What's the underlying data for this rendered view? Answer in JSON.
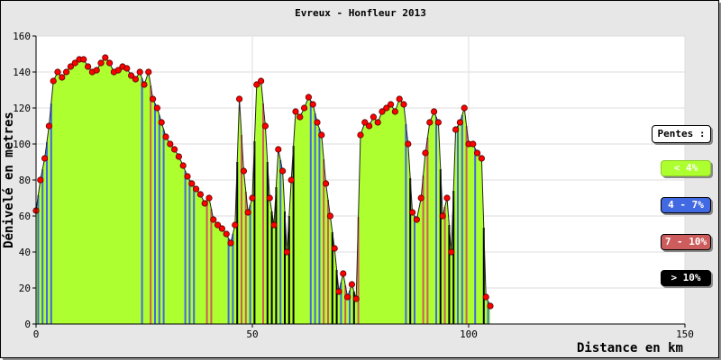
{
  "chart_data": {
    "type": "area",
    "title": "Evreux - Honfleur 2013",
    "xlabel": "Distance en km",
    "ylabel": "Dénivelé en metres",
    "xlim": [
      0,
      150
    ],
    "ylim": [
      0,
      160
    ],
    "xticks": [
      "0",
      "50",
      "100",
      "150"
    ],
    "yticks": [
      "0",
      "20",
      "40",
      "60",
      "80",
      "100",
      "120",
      "140",
      "160"
    ],
    "grid": true,
    "fill_color": "#adff2f",
    "marker_color": "#ff0000",
    "legend": {
      "title": "Pentes :",
      "placement": "right",
      "items": [
        {
          "label": "< 4%",
          "color": "#adff2f"
        },
        {
          "label": "4 - 7%",
          "color": "#4169e1"
        },
        {
          "label": "7 - 10%",
          "color": "#cd5c5c"
        },
        {
          "label": "> 10%",
          "color": "#000000"
        }
      ]
    },
    "x": [
      0,
      1,
      2,
      3,
      4,
      5,
      6,
      7,
      8,
      9,
      10,
      11,
      12,
      13,
      14,
      15,
      16,
      17,
      18,
      19,
      20,
      21,
      22,
      23,
      24,
      25,
      26,
      27,
      28,
      29,
      30,
      31,
      32,
      33,
      34,
      35,
      36,
      37,
      38,
      39,
      40,
      41,
      42,
      43,
      44,
      45,
      46,
      47,
      48,
      49,
      50,
      51,
      52,
      53,
      54,
      55,
      56,
      57,
      58,
      59,
      60,
      61,
      62,
      63,
      64,
      65,
      66,
      67,
      68,
      69,
      70,
      71,
      72,
      73,
      74,
      75,
      76,
      77,
      78,
      79,
      80,
      81,
      82,
      83,
      84,
      85,
      86,
      87,
      88,
      89,
      90,
      91,
      92,
      93,
      94,
      95,
      96,
      97,
      98,
      99,
      100,
      101,
      102,
      103,
      104,
      105
    ],
    "y": [
      63,
      80,
      92,
      110,
      135,
      140,
      137,
      140,
      143,
      145,
      147,
      147,
      143,
      140,
      141,
      145,
      148,
      145,
      140,
      141,
      143,
      142,
      138,
      136,
      140,
      133,
      140,
      125,
      120,
      112,
      104,
      100,
      97,
      93,
      88,
      82,
      78,
      75,
      72,
      67,
      70,
      58,
      55,
      53,
      50,
      45,
      55,
      125,
      85,
      62,
      70,
      133,
      135,
      110,
      70,
      55,
      97,
      85,
      40,
      80,
      118,
      115,
      120,
      126,
      122,
      112,
      105,
      78,
      60,
      42,
      18,
      28,
      15,
      22,
      14,
      105,
      112,
      110,
      115,
      112,
      118,
      120,
      122,
      118,
      125,
      122,
      100,
      62,
      58,
      70,
      95,
      112,
      118,
      112,
      60,
      70,
      40,
      108,
      112,
      120,
      100,
      100,
      95,
      92,
      15,
      10
    ],
    "segment_classes": [
      1,
      1,
      1,
      1,
      0,
      0,
      0,
      0,
      0,
      0,
      0,
      0,
      0,
      0,
      0,
      0,
      0,
      0,
      0,
      0,
      0,
      0,
      0,
      0,
      1,
      0,
      2,
      1,
      1,
      1,
      0,
      0,
      0,
      0,
      1,
      1,
      1,
      0,
      0,
      2,
      2,
      0,
      0,
      0,
      1,
      1,
      3,
      2,
      2,
      1,
      3,
      0,
      2,
      3,
      3,
      3,
      1,
      3,
      3,
      3,
      0,
      0,
      0,
      1,
      1,
      1,
      2,
      2,
      3,
      3,
      1,
      2,
      1,
      3,
      2,
      0,
      0,
      0,
      0,
      0,
      0,
      0,
      0,
      0,
      0,
      1,
      3,
      1,
      0,
      2,
      2,
      0,
      1,
      3,
      2,
      3,
      3,
      1,
      1,
      2,
      0,
      1,
      0,
      3,
      1
    ]
  }
}
